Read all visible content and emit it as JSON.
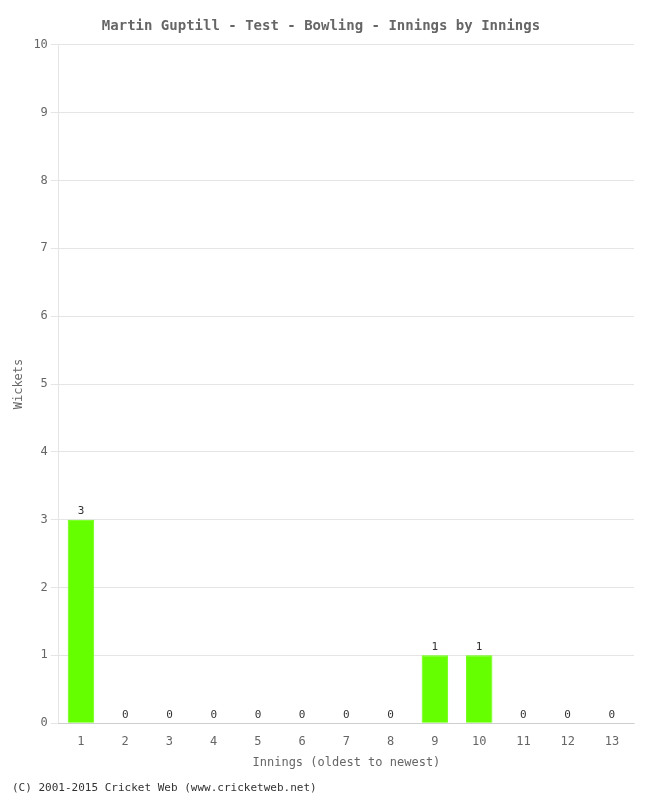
{
  "chart_data": {
    "type": "bar",
    "title": "Martin Guptill - Test - Bowling - Innings by Innings",
    "xlabel": "Innings (oldest to newest)",
    "ylabel": "Wickets",
    "categories": [
      "1",
      "2",
      "3",
      "4",
      "5",
      "6",
      "7",
      "8",
      "9",
      "10",
      "11",
      "12",
      "13"
    ],
    "values": [
      3,
      0,
      0,
      0,
      0,
      0,
      0,
      0,
      1,
      1,
      0,
      0,
      0
    ],
    "color": "#66ff00",
    "ylim": [
      0,
      10
    ],
    "yticks": [
      0,
      1,
      2,
      3,
      4,
      5,
      6,
      7,
      8,
      9,
      10
    ],
    "grid": true,
    "data_labels": true,
    "annotations": [
      "(C) 2001-2015 Cricket Web (www.cricketweb.net)"
    ]
  }
}
